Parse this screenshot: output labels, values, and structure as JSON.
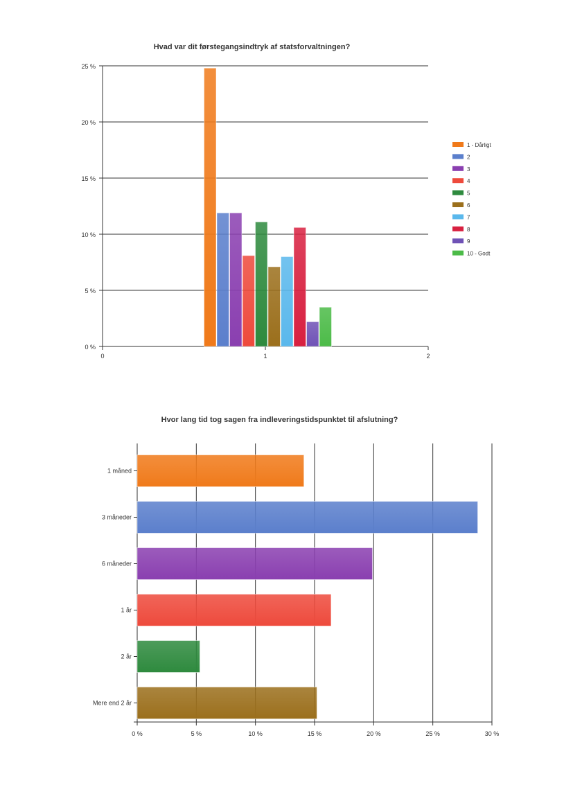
{
  "colors": {
    "orange": "#f07a1a",
    "blue": "#5b7fcc",
    "purple": "#8a3fb0",
    "red": "#ee4a3c",
    "green": "#2e8a3e",
    "brown": "#9b6f1c",
    "lightblue": "#5ab8ec",
    "crimson": "#d82040",
    "violet": "#6f52b6",
    "lightgreen": "#4cbb48"
  },
  "chart_data": [
    {
      "type": "bar",
      "title": "Hvad var dit førstegangsindtryk af statsforvaltningen?",
      "xlabel": "",
      "ylabel": "",
      "xlim": [
        0,
        2
      ],
      "xticks": [
        "0",
        "1",
        "2"
      ],
      "ylim": [
        0,
        25
      ],
      "yticks": [
        "0 %",
        "5 %",
        "10 %",
        "15 %",
        "20 %",
        "25 %"
      ],
      "grid": true,
      "legend_position": "right",
      "series": [
        {
          "name": "1 - Dårligt",
          "values": [
            24.8
          ],
          "color": "#f07a1a"
        },
        {
          "name": "2",
          "values": [
            11.9
          ],
          "color": "#5b7fcc"
        },
        {
          "name": "3",
          "values": [
            11.9
          ],
          "color": "#8a3fb0"
        },
        {
          "name": "4",
          "values": [
            8.1
          ],
          "color": "#ee4a3c"
        },
        {
          "name": "5",
          "values": [
            11.1
          ],
          "color": "#2e8a3e"
        },
        {
          "name": "6",
          "values": [
            7.1
          ],
          "color": "#9b6f1c"
        },
        {
          "name": "7",
          "values": [
            8.0
          ],
          "color": "#5ab8ec"
        },
        {
          "name": "8",
          "values": [
            10.6
          ],
          "color": "#d82040"
        },
        {
          "name": "9",
          "values": [
            2.2
          ],
          "color": "#6f52b6"
        },
        {
          "name": "10 - Godt",
          "values": [
            3.5
          ],
          "color": "#4cbb48"
        }
      ]
    },
    {
      "type": "bar",
      "orientation": "horizontal",
      "title": "Hvor lang tid tog sagen fra indleveringstidspunktet til afslutning?",
      "xlabel": "",
      "ylabel": "",
      "xlim": [
        0,
        30
      ],
      "xticks": [
        "0 %",
        "5 %",
        "10 %",
        "15 %",
        "20 %",
        "25 %",
        "30 %"
      ],
      "grid": true,
      "categories": [
        "1 måned",
        "3 måneder",
        "6 måneder",
        "1 år",
        "2 år",
        "Mere end 2 år"
      ],
      "values": [
        14.1,
        28.8,
        19.9,
        16.4,
        5.3,
        15.2
      ],
      "colors": [
        "#f07a1a",
        "#5b7fcc",
        "#8a3fb0",
        "#ee4a3c",
        "#2e8a3e",
        "#9b6f1c"
      ]
    }
  ]
}
